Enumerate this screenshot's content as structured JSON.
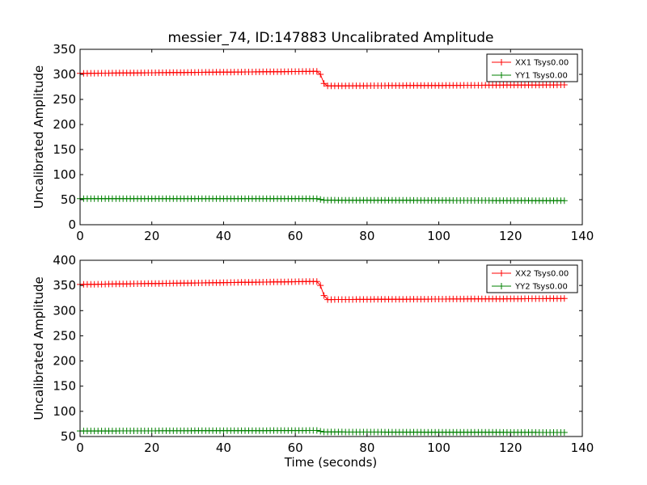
{
  "figure": {
    "title": "messier_74, ID:147883 Uncalibrated Amplitude",
    "xlabel": "Time (seconds)"
  },
  "colors": {
    "xx": "#ff0000",
    "yy": "#008000",
    "axis": "#000000",
    "background": "#ffffff"
  },
  "chart_data": [
    {
      "type": "line",
      "ylabel": "Uncalibrated Amplitude",
      "xlim": [
        0,
        140
      ],
      "ylim": [
        0,
        350
      ],
      "xticks": [
        0,
        20,
        40,
        60,
        80,
        100,
        120,
        140
      ],
      "yticks": [
        0,
        50,
        100,
        150,
        200,
        250,
        300,
        350
      ],
      "grid": false,
      "legend_position": "top-right",
      "marker": "+",
      "series": [
        {
          "name": "XX1 Tsys0.00",
          "color": "#ff0000",
          "segments": [
            {
              "x0": 0,
              "x1": 66,
              "y0": 302,
              "y1": 306
            },
            {
              "x0": 66,
              "x1": 67,
              "y0": 306,
              "y1": 300
            },
            {
              "x0": 67,
              "x1": 68,
              "y0": 300,
              "y1": 282
            },
            {
              "x0": 68,
              "x1": 69,
              "y0": 282,
              "y1": 277
            },
            {
              "x0": 69,
              "x1": 135,
              "y0": 277,
              "y1": 279
            }
          ]
        },
        {
          "name": "YY1 Tsys0.00",
          "color": "#008000",
          "segments": [
            {
              "x0": 0,
              "x1": 66,
              "y0": 52,
              "y1": 52
            },
            {
              "x0": 66,
              "x1": 68,
              "y0": 52,
              "y1": 49
            },
            {
              "x0": 68,
              "x1": 135,
              "y0": 49,
              "y1": 48
            }
          ]
        }
      ]
    },
    {
      "type": "line",
      "ylabel": "Uncalibrated Amplitude",
      "xlim": [
        0,
        140
      ],
      "ylim": [
        50,
        400
      ],
      "xticks": [
        0,
        20,
        40,
        60,
        80,
        100,
        120,
        140
      ],
      "yticks": [
        50,
        100,
        150,
        200,
        250,
        300,
        350,
        400
      ],
      "grid": false,
      "legend_position": "top-right",
      "marker": "+",
      "series": [
        {
          "name": "XX2 Tsys0.00",
          "color": "#ff0000",
          "segments": [
            {
              "x0": 0,
              "x1": 66,
              "y0": 352,
              "y1": 358
            },
            {
              "x0": 66,
              "x1": 67,
              "y0": 358,
              "y1": 350
            },
            {
              "x0": 67,
              "x1": 68,
              "y0": 350,
              "y1": 330
            },
            {
              "x0": 68,
              "x1": 69,
              "y0": 330,
              "y1": 322
            },
            {
              "x0": 69,
              "x1": 135,
              "y0": 322,
              "y1": 324
            }
          ]
        },
        {
          "name": "YY2 Tsys0.00",
          "color": "#008000",
          "segments": [
            {
              "x0": 0,
              "x1": 66,
              "y0": 61,
              "y1": 62
            },
            {
              "x0": 66,
              "x1": 68,
              "y0": 62,
              "y1": 59
            },
            {
              "x0": 68,
              "x1": 135,
              "y0": 59,
              "y1": 58
            }
          ]
        }
      ]
    }
  ]
}
